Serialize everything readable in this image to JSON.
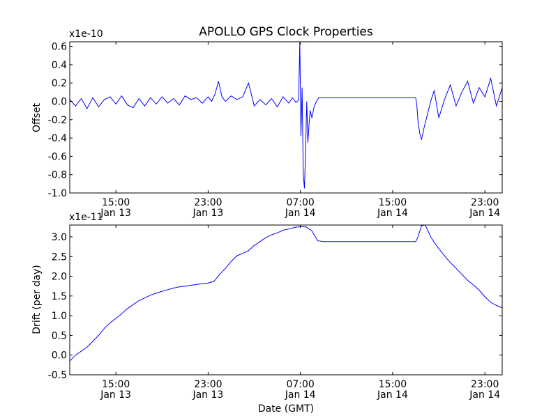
{
  "title": "APOLLO GPS Clock Properties",
  "chart_data": [
    {
      "type": "line",
      "title": "APOLLO GPS Clock Properties",
      "xlabel": "",
      "ylabel": "Offset",
      "scale_label": "x1e-10",
      "series_color": "#0000ff",
      "x_unit": "hours from Jan 13 11:00 GMT",
      "xlim": [
        0,
        37.5
      ],
      "ylim": [
        -1.0,
        0.65
      ],
      "yticks": [
        -1.0,
        -0.8,
        -0.6,
        -0.4,
        -0.2,
        0.0,
        0.2,
        0.4,
        0.6
      ],
      "ytick_labels": [
        "-1.0",
        "-0.8",
        "-0.6",
        "-0.4",
        "-0.2",
        "0.0",
        "0.2",
        "0.4",
        "0.6"
      ],
      "xticks": [
        {
          "x": 4,
          "time": "15:00",
          "date": "Jan 13"
        },
        {
          "x": 12,
          "time": "23:00",
          "date": "Jan 13"
        },
        {
          "x": 20,
          "time": "07:00",
          "date": "Jan 14"
        },
        {
          "x": 28,
          "time": "15:00",
          "date": "Jan 14"
        },
        {
          "x": 36,
          "time": "23:00",
          "date": "Jan 14"
        }
      ],
      "x": [
        0,
        0.5,
        1,
        1.5,
        2,
        2.5,
        3,
        3.5,
        4,
        4.5,
        5,
        5.5,
        6,
        6.5,
        7,
        7.5,
        8,
        8.5,
        9,
        9.5,
        10,
        10.5,
        11,
        11.5,
        12,
        12.3,
        12.6,
        12.9,
        13.2,
        13.5,
        14,
        14.5,
        15,
        15.5,
        16,
        16.5,
        17,
        17.5,
        18,
        18.5,
        19,
        19.3,
        19.6,
        19.75,
        19.85,
        19.95,
        20.05,
        20.15,
        20.25,
        20.35,
        20.45,
        20.55,
        20.65,
        20.75,
        20.85,
        21.0,
        21.2,
        21.4,
        21.6,
        21.75,
        22,
        23,
        24,
        25,
        26,
        27,
        28,
        29,
        30,
        30.1,
        30.2,
        30.35,
        30.5,
        30.7,
        30.9,
        31.1,
        31.3,
        31.6,
        32,
        32.5,
        33,
        33.5,
        34,
        34.5,
        35,
        35.5,
        36,
        36.5,
        37,
        37.5
      ],
      "y": [
        0.02,
        -0.05,
        0.03,
        -0.08,
        0.04,
        -0.06,
        0.02,
        0.05,
        -0.03,
        0.06,
        -0.04,
        -0.07,
        0.03,
        -0.05,
        0.04,
        -0.03,
        0.05,
        -0.02,
        0.03,
        -0.04,
        0.06,
        0.02,
        0.04,
        -0.02,
        0.05,
        0.0,
        0.08,
        0.22,
        0.05,
        0.0,
        0.06,
        0.02,
        0.05,
        0.2,
        -0.05,
        0.02,
        -0.04,
        0.03,
        -0.06,
        0.05,
        -0.02,
        0.04,
        -0.01,
        0.0,
        0.02,
        0.65,
        -0.38,
        0.15,
        -0.8,
        -0.95,
        -0.55,
        0.0,
        -0.45,
        -0.25,
        -0.1,
        -0.18,
        -0.05,
        0.0,
        0.04,
        0.04,
        0.04,
        0.04,
        0.04,
        0.04,
        0.04,
        0.04,
        0.04,
        0.04,
        0.04,
        -0.05,
        -0.22,
        -0.35,
        -0.42,
        -0.3,
        -0.2,
        -0.1,
        0.0,
        0.12,
        -0.18,
        0.02,
        0.18,
        -0.05,
        0.1,
        0.22,
        -0.02,
        0.15,
        0.05,
        0.25,
        -0.05,
        0.15
      ]
    },
    {
      "type": "line",
      "title": "",
      "xlabel": "Date (GMT)",
      "ylabel": "Drift (per day)",
      "scale_label": "x1e-11",
      "series_color": "#0000ff",
      "x_unit": "hours from Jan 13 11:00 GMT",
      "xlim": [
        0,
        37.5
      ],
      "ylim": [
        -0.5,
        3.3
      ],
      "yticks": [
        -0.5,
        0.0,
        0.5,
        1.0,
        1.5,
        2.0,
        2.5,
        3.0
      ],
      "ytick_labels": [
        "-0.5",
        "0.0",
        "0.5",
        "1.0",
        "1.5",
        "2.0",
        "2.5",
        "3.0"
      ],
      "xticks": [
        {
          "x": 4,
          "time": "15:00",
          "date": "Jan 13"
        },
        {
          "x": 12,
          "time": "23:00",
          "date": "Jan 13"
        },
        {
          "x": 20,
          "time": "07:00",
          "date": "Jan 14"
        },
        {
          "x": 28,
          "time": "15:00",
          "date": "Jan 14"
        },
        {
          "x": 36,
          "time": "23:00",
          "date": "Jan 14"
        }
      ],
      "x": [
        0,
        0.5,
        1,
        1.5,
        2,
        2.5,
        3,
        3.5,
        4,
        4.5,
        5,
        5.5,
        6,
        6.5,
        7,
        7.5,
        8,
        8.5,
        9,
        9.5,
        10,
        10.5,
        11,
        11.5,
        12,
        12.5,
        13,
        13.5,
        14,
        14.5,
        15,
        15.5,
        16,
        16.5,
        17,
        17.5,
        18,
        18.5,
        19,
        19.5,
        20,
        20.5,
        21,
        21.5,
        22,
        23,
        24,
        25,
        26,
        27,
        28,
        29,
        30,
        30.2,
        30.5,
        30.8,
        31,
        31.3,
        31.7,
        32,
        32.5,
        33,
        33.5,
        34,
        34.5,
        35,
        35.5,
        36,
        36.5,
        37,
        37.5
      ],
      "y": [
        -0.15,
        0.0,
        0.1,
        0.2,
        0.35,
        0.5,
        0.68,
        0.82,
        0.93,
        1.05,
        1.18,
        1.28,
        1.38,
        1.45,
        1.52,
        1.57,
        1.62,
        1.66,
        1.7,
        1.73,
        1.75,
        1.77,
        1.79,
        1.81,
        1.83,
        1.87,
        2.05,
        2.2,
        2.38,
        2.52,
        2.58,
        2.65,
        2.78,
        2.88,
        2.98,
        3.05,
        3.1,
        3.17,
        3.2,
        3.24,
        3.26,
        3.25,
        3.15,
        2.9,
        2.88,
        2.88,
        2.88,
        2.88,
        2.88,
        2.88,
        2.88,
        2.88,
        2.88,
        3.0,
        3.28,
        3.3,
        3.2,
        3.0,
        2.82,
        2.7,
        2.52,
        2.35,
        2.2,
        2.05,
        1.9,
        1.78,
        1.65,
        1.48,
        1.34,
        1.26,
        1.2
      ]
    }
  ]
}
